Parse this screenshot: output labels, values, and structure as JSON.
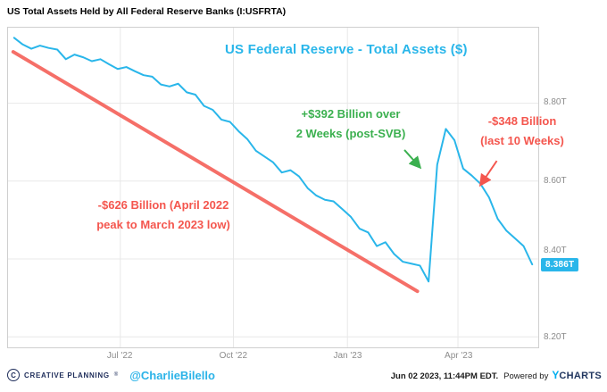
{
  "header": {
    "title": "US Total Assets Held by All Federal Reserve Banks (I:USFRTA)"
  },
  "colors": {
    "line": "#29b6ea",
    "red": "#f4564e",
    "green": "#3bb04f",
    "grid": "#e8e8e8",
    "axis_text": "#8c8c8c",
    "border": "#cfcfcf",
    "badge_bg": "#29b6ea",
    "navy": "#1e2d5a",
    "ycharts_cyan": "#00aeef"
  },
  "chart_data": {
    "type": "line",
    "title": "US Federal Reserve - Total Assets ($)",
    "unit": "T",
    "week_range": [
      -0.7,
      60.7
    ],
    "ylim": [
      8.173,
      8.994
    ],
    "yticks": [
      {
        "value": 8.8,
        "label": "8.80T"
      },
      {
        "value": 8.6,
        "label": "8.60T"
      },
      {
        "value": 8.4,
        "label": "8.40T"
      },
      {
        "value": 8.2,
        "label": "8.20T"
      }
    ],
    "xticks": [
      {
        "week": 12.3,
        "label": "Jul '22"
      },
      {
        "week": 25.4,
        "label": "Oct '22"
      },
      {
        "week": 38.6,
        "label": "Jan '23"
      },
      {
        "week": 51.4,
        "label": "Apr '23"
      }
    ],
    "values": [
      8.968,
      8.951,
      8.94,
      8.948,
      8.942,
      8.938,
      8.913,
      8.925,
      8.918,
      8.908,
      8.913,
      8.9,
      8.888,
      8.893,
      8.882,
      8.872,
      8.868,
      8.848,
      8.843,
      8.85,
      8.828,
      8.822,
      8.793,
      8.783,
      8.758,
      8.752,
      8.728,
      8.708,
      8.678,
      8.663,
      8.648,
      8.622,
      8.628,
      8.612,
      8.582,
      8.563,
      8.552,
      8.548,
      8.528,
      8.508,
      8.478,
      8.468,
      8.433,
      8.443,
      8.413,
      8.393,
      8.388,
      8.383,
      8.342,
      8.642,
      8.734,
      8.705,
      8.632,
      8.614,
      8.593,
      8.558,
      8.503,
      8.473,
      8.453,
      8.433,
      8.386
    ],
    "last_value_label": "8.386T",
    "annotations": {
      "decline": {
        "line1": "-$626 Billion (April 2022",
        "line2": "peak to March 2023 low)"
      },
      "svb": {
        "line1": "+$392 Billion over",
        "line2": "2 Weeks (post-SVB)"
      },
      "recent": {
        "line1": "-$348 Billion",
        "line2": "(last 10 Weeks)"
      },
      "trend_line": {
        "from": [
          -0.1,
          8.932
        ],
        "to": [
          46.7,
          8.317
        ]
      },
      "svb_arrow": {
        "from": [
          45.2,
          8.68
        ],
        "to": [
          46.9,
          8.638
        ]
      },
      "recent_arrow": {
        "from": [
          55.9,
          8.652
        ],
        "to": [
          54.1,
          8.593
        ]
      }
    }
  },
  "footer": {
    "brand_icon": "C",
    "brand": "CREATIVE PLANNING",
    "brand_reg": "®",
    "handle": "@CharlieBilello",
    "timestamp": "Jun 02 2023, 11:44PM EDT.",
    "powered_by": "Powered by",
    "ycharts_y": "Y",
    "ycharts_rest": "CHARTS"
  }
}
